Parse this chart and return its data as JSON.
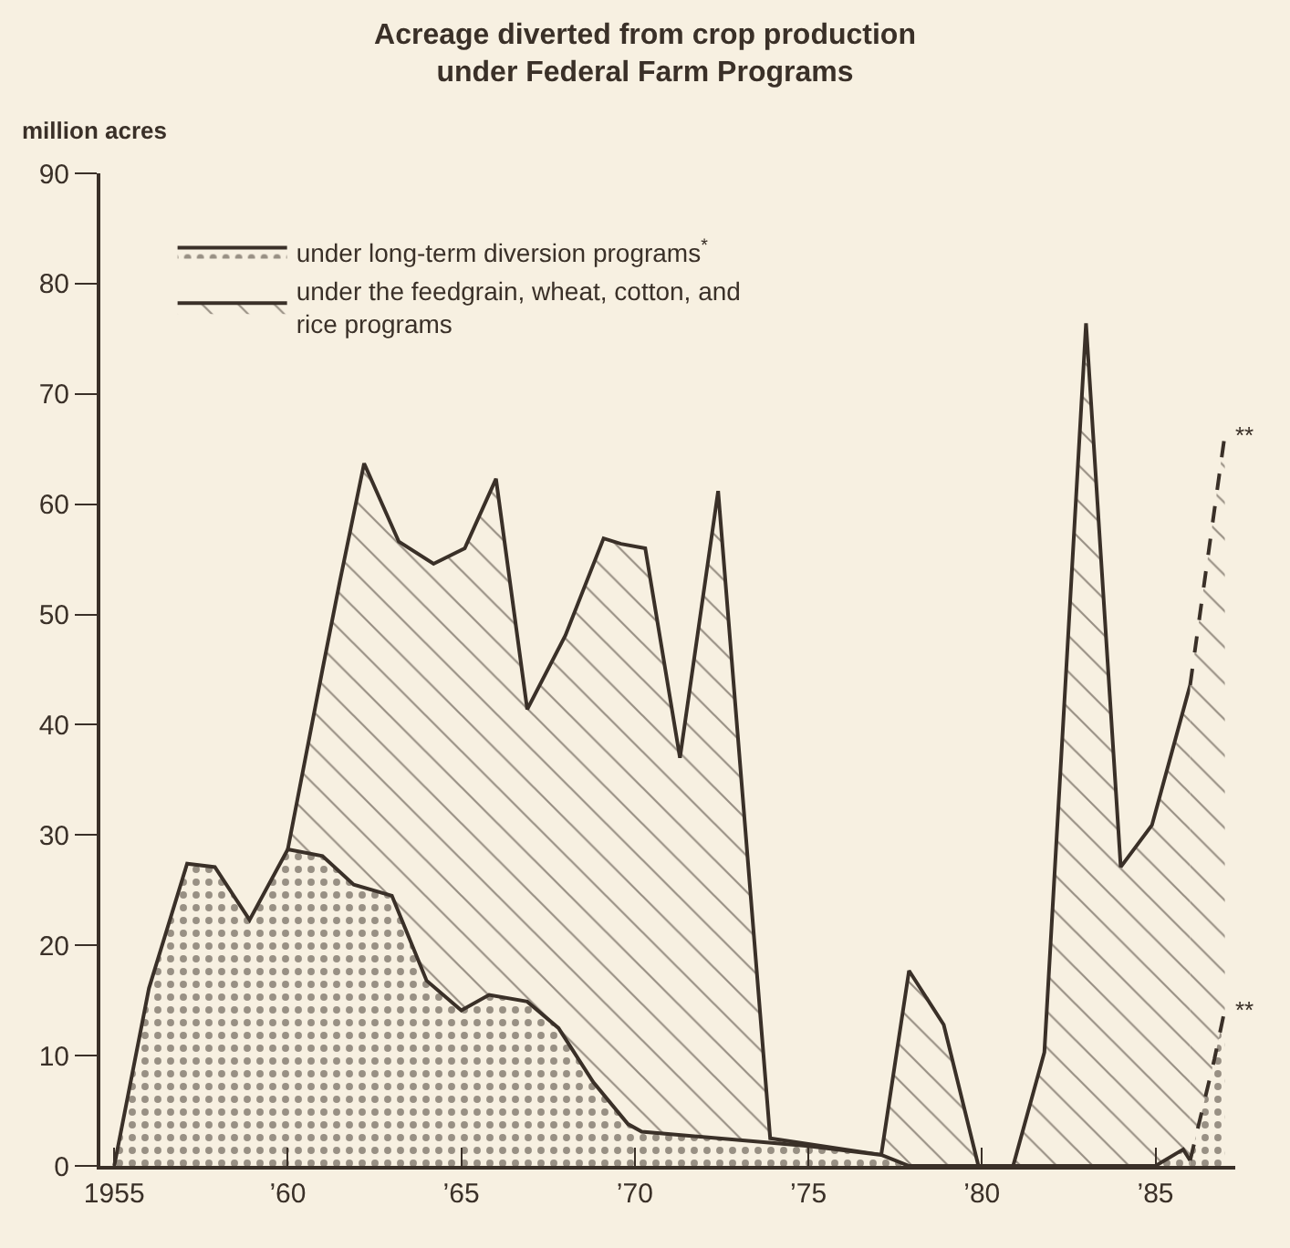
{
  "chart_data": {
    "type": "area",
    "title": "Acreage diverted from crop production\nunder Federal Farm Programs",
    "ylabel": "million acres",
    "xlim": [
      1954.6,
      1987.3
    ],
    "ylim": [
      0,
      90
    ],
    "xticks": [
      {
        "value": 1955,
        "label": "1955"
      },
      {
        "value": 1960,
        "label": "’60"
      },
      {
        "value": 1965,
        "label": "’65"
      },
      {
        "value": 1970,
        "label": "’70"
      },
      {
        "value": 1975,
        "label": "’75"
      },
      {
        "value": 1980,
        "label": "’80"
      },
      {
        "value": 1985,
        "label": "’85"
      }
    ],
    "yticks": [
      0,
      10,
      20,
      30,
      40,
      50,
      60,
      70,
      80,
      90
    ],
    "grid": false,
    "legend": "top left",
    "marker": "none",
    "series": [
      {
        "name": "under the feedgrain, wheat, cotton, and\nrice programs",
        "color": "#3a3028",
        "line_style": "solid",
        "x": [
          1960.0,
          1961.0,
          1961.5,
          1962.2,
          1963.2,
          1964.2,
          1965.1,
          1966.0,
          1966.9,
          1968.0,
          1969.1,
          1969.6,
          1970.3,
          1971.3,
          1972.4,
          1973.9,
          1977.1,
          1977.9,
          1978.9,
          1979.9,
          1980.9,
          1981.8,
          1983.0,
          1984.0,
          1984.9,
          1986.0
        ],
        "values": [
          28.7,
          45,
          53,
          63.7,
          56.6,
          54.6,
          56.0,
          62.3,
          41.4,
          48.1,
          56.9,
          56.4,
          56.0,
          37.0,
          61.2,
          2.5,
          1.0,
          17.7,
          12.8,
          0,
          0,
          10.3,
          76.4,
          27.1,
          30.9,
          43.6
        ]
      },
      {
        "color": "#3a3028",
        "line_style": "dashed",
        "x": [
          1986.0,
          1987.0
        ],
        "values": [
          43.6,
          66.3
        ]
      },
      {
        "name": "under long-term diversion programs$^{*}$",
        "color": "#3a3028",
        "line_style": "solid",
        "x": [
          1955.0,
          1956.0,
          1957.1,
          1957.9,
          1958.9,
          1960.0,
          1961.0,
          1961.9,
          1963.0,
          1964.0,
          1965.0,
          1965.8,
          1966.9,
          1967.8,
          1968.8,
          1969.8,
          1970.2,
          1975.0,
          1977.1,
          1977.9,
          1980.0,
          1985.0,
          1985.8,
          1986.0
        ],
        "values": [
          0,
          16.1,
          27.4,
          27.1,
          22.3,
          28.7,
          28.1,
          25.5,
          24.5,
          16.8,
          14.1,
          15.5,
          14.9,
          12.5,
          7.6,
          3.8,
          3.1,
          1.8,
          1.0,
          0,
          0,
          0,
          1.5,
          0.5
        ]
      },
      {
        "color": "#3a3028",
        "line_style": "dashed",
        "x": [
          1986.0,
          1986.7,
          1987.0
        ],
        "values": [
          0.5,
          9.7,
          14.2
        ]
      }
    ],
    "annotations": [
      {
        "text": "**",
        "x": 1987.0,
        "y": 66.3
      },
      {
        "text": "**",
        "x": 1987.0,
        "y": 14.2
      }
    ]
  }
}
